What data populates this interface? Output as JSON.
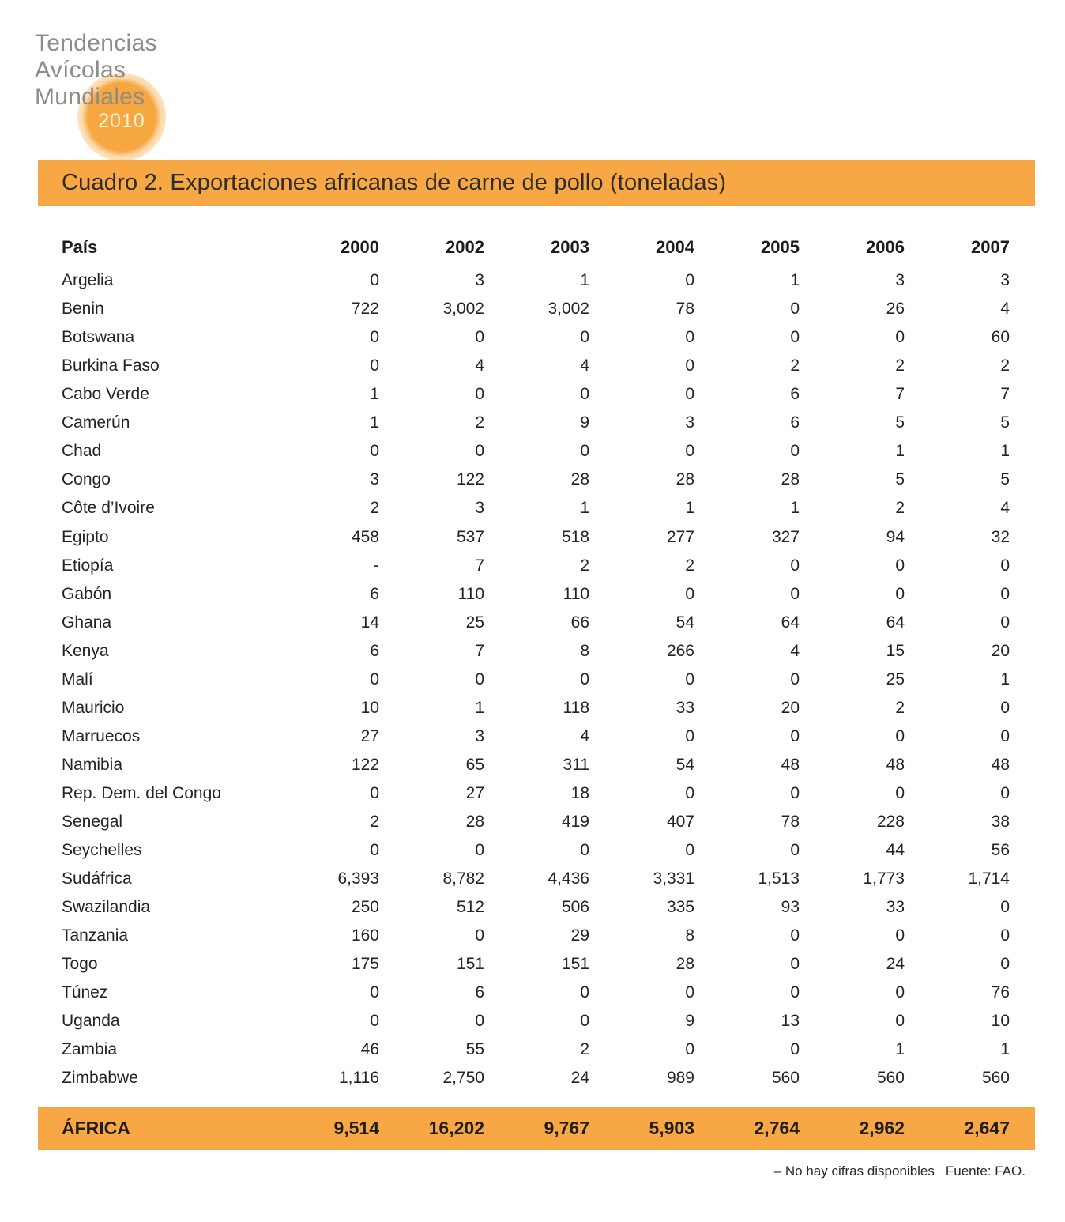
{
  "logo": {
    "line1": "Tendencias",
    "line2": "Avícolas",
    "line3": "Mundiales",
    "year_badge": "2010"
  },
  "title_bar": {
    "title": "Cuadro 2. Exportaciones africanas de carne de pollo (toneladas)"
  },
  "colors": {
    "accent_orange": "#f7a844",
    "logo_gray": "#8d8c8a",
    "text_dark": "#1f1d1b"
  },
  "table": {
    "columns": [
      "País",
      "2000",
      "2002",
      "2003",
      "2004",
      "2005",
      "2006",
      "2007"
    ],
    "rows": [
      [
        "Argelia",
        "0",
        "3",
        "1",
        "0",
        "1",
        "3",
        "3"
      ],
      [
        "Benin",
        "722",
        "3,002",
        "3,002",
        "78",
        "0",
        "26",
        "4"
      ],
      [
        "Botswana",
        "0",
        "0",
        "0",
        "0",
        "0",
        "0",
        "60"
      ],
      [
        "Burkina Faso",
        "0",
        "4",
        "4",
        "0",
        "2",
        "2",
        "2"
      ],
      [
        "Cabo Verde",
        "1",
        "0",
        "0",
        "0",
        "6",
        "7",
        "7"
      ],
      [
        "Camerún",
        "1",
        "2",
        "9",
        "3",
        "6",
        "5",
        "5"
      ],
      [
        "Chad",
        "0",
        "0",
        "0",
        "0",
        "0",
        "1",
        "1"
      ],
      [
        "Congo",
        "3",
        "122",
        "28",
        "28",
        "28",
        "5",
        "5"
      ],
      [
        "Côte d’Ivoire",
        "2",
        "3",
        "1",
        "1",
        "1",
        "2",
        "4"
      ],
      [
        "Egipto",
        "458",
        "537",
        "518",
        "277",
        "327",
        "94",
        "32"
      ],
      [
        "Etiopía",
        "-",
        "7",
        "2",
        "2",
        "0",
        "0",
        "0"
      ],
      [
        "Gabón",
        "6",
        "110",
        "110",
        "0",
        "0",
        "0",
        "0"
      ],
      [
        "Ghana",
        "14",
        "25",
        "66",
        "54",
        "64",
        "64",
        "0"
      ],
      [
        "Kenya",
        "6",
        "7",
        "8",
        "266",
        "4",
        "15",
        "20"
      ],
      [
        "Malí",
        "0",
        "0",
        "0",
        "0",
        "0",
        "25",
        "1"
      ],
      [
        "Mauricio",
        "10",
        "1",
        "118",
        "33",
        "20",
        "2",
        "0"
      ],
      [
        "Marruecos",
        "27",
        "3",
        "4",
        "0",
        "0",
        "0",
        "0"
      ],
      [
        "Namibia",
        "122",
        "65",
        "311",
        "54",
        "48",
        "48",
        "48"
      ],
      [
        "Rep. Dem. del Congo",
        "0",
        "27",
        "18",
        "0",
        "0",
        "0",
        "0"
      ],
      [
        "Senegal",
        "2",
        "28",
        "419",
        "407",
        "78",
        "228",
        "38"
      ],
      [
        "Seychelles",
        "0",
        "0",
        "0",
        "0",
        "0",
        "44",
        "56"
      ],
      [
        "Sudáfrica",
        "6,393",
        "8,782",
        "4,436",
        "3,331",
        "1,513",
        "1,773",
        "1,714"
      ],
      [
        "Swazilandia",
        "250",
        "512",
        "506",
        "335",
        "93",
        "33",
        "0"
      ],
      [
        "Tanzania",
        "160",
        "0",
        "29",
        "8",
        "0",
        "0",
        "0"
      ],
      [
        "Togo",
        "175",
        "151",
        "151",
        "28",
        "0",
        "24",
        "0"
      ],
      [
        "Túnez",
        "0",
        "6",
        "0",
        "0",
        "0",
        "0",
        "76"
      ],
      [
        "Uganda",
        "0",
        "0",
        "0",
        "9",
        "13",
        "0",
        "10"
      ],
      [
        "Zambia",
        "46",
        "55",
        "2",
        "0",
        "0",
        "1",
        "1"
      ],
      [
        "Zimbabwe",
        "1,116",
        "2,750",
        "24",
        "989",
        "560",
        "560",
        "560"
      ]
    ],
    "total_row": [
      "ÁFRICA",
      "9,514",
      "16,202",
      "9,767",
      "5,903",
      "2,764",
      "2,962",
      "2,647"
    ]
  },
  "footnote": {
    "note": "–  No hay cifras disponibles",
    "source": "Fuente: FAO."
  }
}
